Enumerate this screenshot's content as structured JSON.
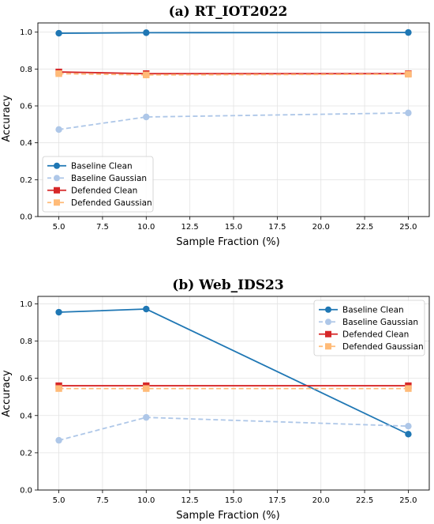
{
  "chart_data": [
    {
      "type": "line",
      "title": "(a) RT_IOT2022",
      "xlabel": "Sample Fraction (%)",
      "ylabel": "Accuracy",
      "xlim": [
        3.8,
        26.2
      ],
      "ylim": [
        0.0,
        1.05
      ],
      "grid": true,
      "legend_position": "lower-left",
      "x_ticks": [
        "5.0",
        "7.5",
        "10.0",
        "12.5",
        "15.0",
        "17.5",
        "20.0",
        "22.5",
        "25.0"
      ],
      "y_ticks": [
        "0.0",
        "0.2",
        "0.4",
        "0.6",
        "0.8",
        "1.0"
      ],
      "x": [
        5,
        10,
        25
      ],
      "series": [
        {
          "name": "Baseline Clean",
          "values": [
            0.994,
            0.997,
            0.998
          ],
          "color": "#1f77b4",
          "dashed": false,
          "marker": "circle"
        },
        {
          "name": "Baseline Gaussian",
          "values": [
            0.472,
            0.54,
            0.562
          ],
          "color": "#aec7e8",
          "dashed": true,
          "marker": "circle"
        },
        {
          "name": "Defended Clean",
          "values": [
            0.784,
            0.775,
            0.775
          ],
          "color": "#d62728",
          "dashed": false,
          "marker": "square"
        },
        {
          "name": "Defended Gaussian",
          "values": [
            0.775,
            0.768,
            0.772
          ],
          "color": "#ffbb78",
          "dashed": true,
          "marker": "square"
        }
      ]
    },
    {
      "type": "line",
      "title": "(b) Web_IDS23",
      "xlabel": "Sample Fraction (%)",
      "ylabel": "Accuracy",
      "xlim": [
        3.8,
        26.2
      ],
      "ylim": [
        0.0,
        1.04
      ],
      "grid": true,
      "legend_position": "upper-right",
      "x_ticks": [
        "5.0",
        "7.5",
        "10.0",
        "12.5",
        "15.0",
        "17.5",
        "20.0",
        "22.5",
        "25.0"
      ],
      "y_ticks": [
        "0.0",
        "0.2",
        "0.4",
        "0.6",
        "0.8",
        "1.0"
      ],
      "x": [
        5,
        10,
        25
      ],
      "series": [
        {
          "name": "Baseline Clean",
          "values": [
            0.955,
            0.972,
            0.3
          ],
          "color": "#1f77b4",
          "dashed": false,
          "marker": "circle"
        },
        {
          "name": "Baseline Gaussian",
          "values": [
            0.267,
            0.39,
            0.343
          ],
          "color": "#aec7e8",
          "dashed": true,
          "marker": "circle"
        },
        {
          "name": "Defended Clean",
          "values": [
            0.56,
            0.56,
            0.56
          ],
          "color": "#d62728",
          "dashed": false,
          "marker": "square"
        },
        {
          "name": "Defended Gaussian",
          "values": [
            0.545,
            0.545,
            0.545
          ],
          "color": "#ffbb78",
          "dashed": true,
          "marker": "square"
        }
      ]
    }
  ]
}
